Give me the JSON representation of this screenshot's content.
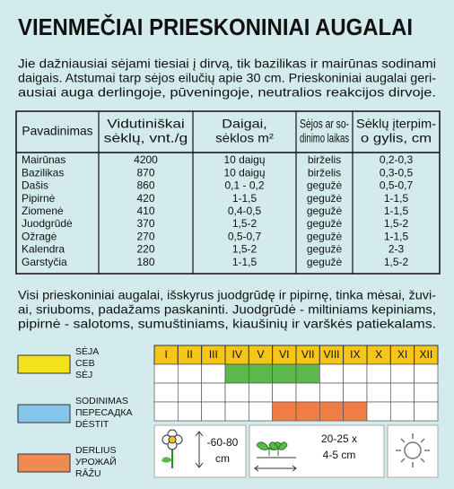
{
  "title": "VIENMEČIAI PRIESKONINIAI AUGALAI",
  "intro": {
    "lines": [
      "Jie dažniausiai sėjami tiesiai į dirvą, tik bazilikas ir mairūnas sodinami",
      "daigais. Atstumai tarp sėjos eilučių apie 30 cm. Prieskoniniai augalai geri-",
      "ausiai auga derlingoje, pūveningoje, neutralios reakcijos dirvoje."
    ]
  },
  "table": {
    "headers": [
      [
        "Pavadinimas"
      ],
      [
        "Vidutiniškai",
        "sėklų, vnt./g"
      ],
      [
        "Daigai,",
        "sėklos m²"
      ],
      [
        "Sėjos ar so-",
        "dinimo laikas"
      ],
      [
        "Sėklų įterpim-",
        "o gylis, cm"
      ]
    ],
    "rows": [
      [
        "Mairūnas",
        4200,
        "10 daigų",
        "birželis",
        "0,2-0,3"
      ],
      [
        "Bazilikas",
        870,
        "10 daigų",
        "birželis",
        "0,3-0,5"
      ],
      [
        "Dašis",
        860,
        "0,1 - 0,2",
        "gegužė",
        "0,5-0,7"
      ],
      [
        "Pipirnė",
        420,
        "1-1,5",
        "gegužė",
        "1-1,5"
      ],
      [
        "Ziomenė",
        410,
        "0,4-0,5",
        "gegužė",
        "1-1,5"
      ],
      [
        "Juodgrūdė",
        370,
        "1,5-2",
        "gegužė",
        "1,5-2"
      ],
      [
        "Ožragė",
        270,
        "0,5-0,7",
        "gegužė",
        "1-1,5"
      ],
      [
        "Kalendra",
        220,
        "1,5-2",
        "gegužė",
        "2-3"
      ],
      [
        "Garstyčia",
        180,
        "1-1,5",
        "gegužė",
        "1,5-2"
      ]
    ]
  },
  "note": {
    "lines": [
      "Visi prieskoniniai augalai, išskyrus juodgrūdę ir pipirnę, tinka mėsai, žuvi-",
      "ai, sriuboms, padažams paskaninti. Juodgrūdė - miltiniams kepiniams,",
      "pipirnė - salotoms, sumuštiniams, kiaušinių ir varškės patiekalams."
    ]
  },
  "legend": [
    {
      "color": "#f2e21c",
      "lines": [
        "SĖJA",
        "СЕВ",
        "SĖJ"
      ]
    },
    {
      "color": "#86c6ea",
      "lines": [
        "SODINIMAS",
        "ПЕРЕСАДКА",
        "DĖSTIT"
      ]
    },
    {
      "color": "#f08a55",
      "lines": [
        "DERLIUS",
        "УРОЖАЙ",
        "RĀŽU"
      ]
    }
  ],
  "calendar": {
    "months": [
      "I",
      "II",
      "III",
      "IV",
      "V",
      "VI",
      "VII",
      "VIII",
      "IX",
      "X",
      "XI",
      "XII"
    ],
    "rows": [
      {
        "color": "#5cb84a",
        "months": [
          "IV",
          "V",
          "VI",
          "VII"
        ]
      },
      {
        "months": []
      },
      {
        "color": "#f07d45",
        "months": [
          "VI",
          "VII",
          "VIII",
          "IX"
        ]
      }
    ]
  },
  "spacing": {
    "height": [
      "-60-80",
      "cm"
    ],
    "rows": [
      "20-25 x",
      "4-5 cm"
    ]
  }
}
